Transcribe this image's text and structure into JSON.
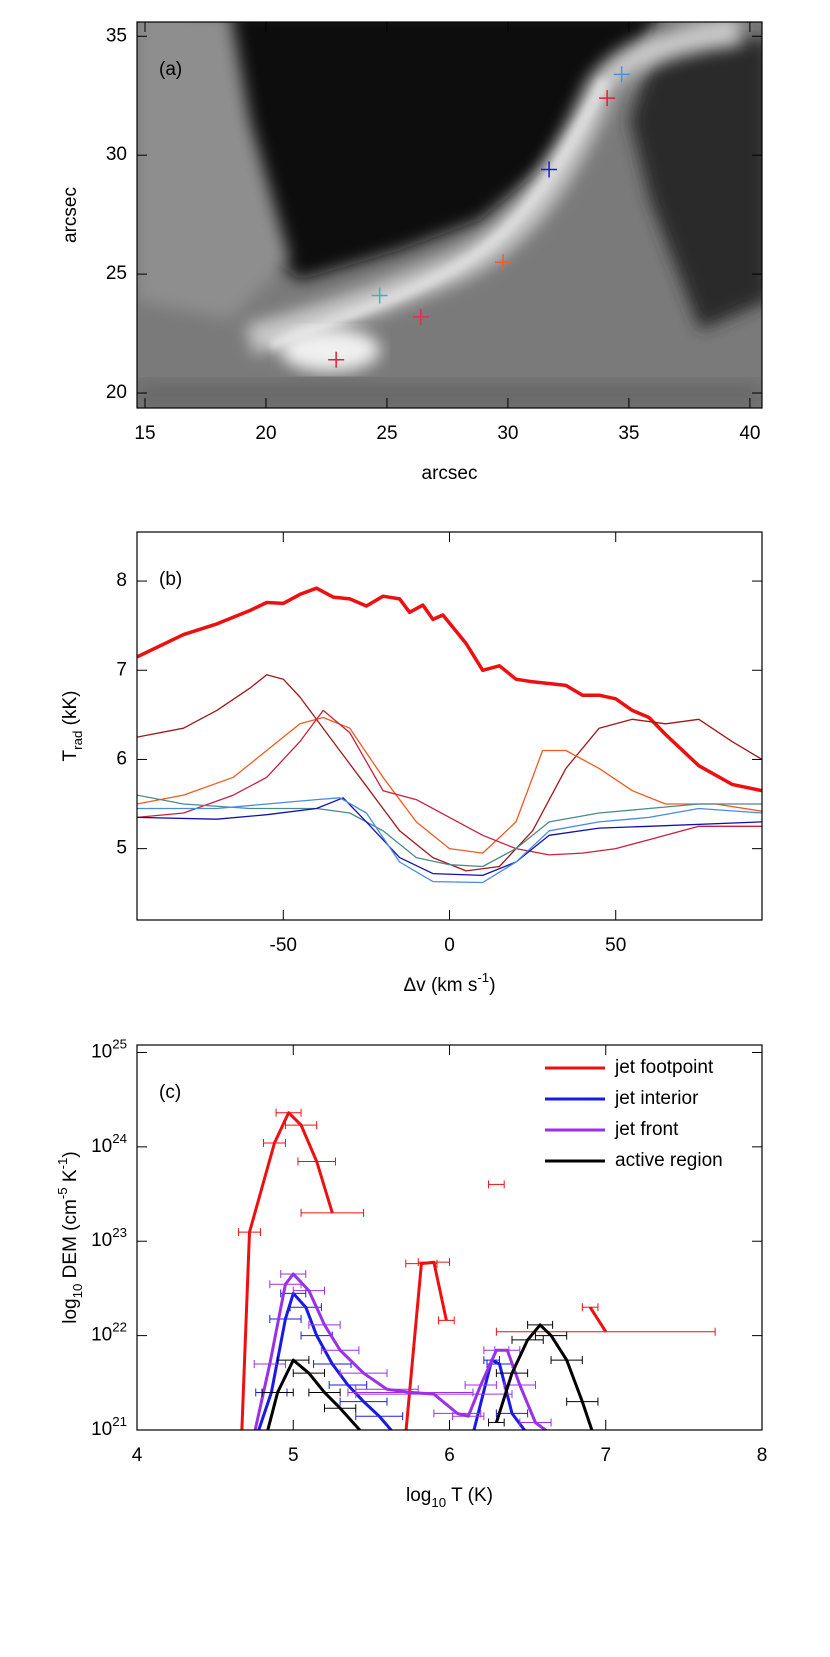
{
  "chart_data": [
    {
      "type": "scatter",
      "title": "(a)",
      "xlabel": "arcsec",
      "ylabel": "arcsec",
      "xlim": [
        14.67,
        40.5
      ],
      "ylim": [
        19.37,
        35.6
      ],
      "xticks": [
        15,
        20,
        25,
        30,
        35,
        40
      ],
      "yticks": [
        20,
        25,
        30,
        35
      ],
      "x": [
        22.9,
        26.4,
        24.7,
        29.8,
        31.7,
        34.1,
        34.7
      ],
      "values": [
        21.4,
        23.2,
        24.1,
        25.5,
        29.4,
        32.4,
        33.4
      ],
      "colors": [
        "#e8202a",
        "#e0304a",
        "#40b0c0",
        "#f06020",
        "#1a1ad0",
        "#e02030",
        "#4a90e0"
      ]
    },
    {
      "type": "line",
      "title": "(b)",
      "xlabel": "Δv (km s^{-1})",
      "ylabel": "T_{rad} (kK)",
      "xlim": [
        -94,
        94
      ],
      "ylim": [
        4.2,
        8.55
      ],
      "xticks": [
        -50,
        0,
        50
      ],
      "yticks": [
        5,
        6,
        7,
        8
      ],
      "series": [
        {
          "color": "#ee1010",
          "width": 3.5,
          "x": [
            -94,
            -80,
            -70,
            -60,
            -55,
            -50,
            -45,
            -40,
            -35,
            -30,
            -25,
            -20,
            -15,
            -12,
            -8,
            -5,
            -2,
            5,
            10,
            15,
            20,
            25,
            35,
            40,
            45,
            50,
            55,
            60,
            65,
            75,
            85,
            94
          ],
          "values": [
            7.15,
            7.4,
            7.52,
            7.67,
            7.76,
            7.75,
            7.85,
            7.92,
            7.82,
            7.8,
            7.72,
            7.83,
            7.8,
            7.65,
            7.73,
            7.57,
            7.62,
            7.3,
            7.0,
            7.05,
            6.9,
            6.87,
            6.83,
            6.72,
            6.72,
            6.68,
            6.55,
            6.47,
            6.28,
            5.93,
            5.72,
            5.65
          ]
        },
        {
          "color": "#a01818",
          "width": 1.3,
          "x": [
            -94,
            -80,
            -70,
            -60,
            -55,
            -50,
            -45,
            -35,
            -25,
            -15,
            -5,
            5,
            15,
            25,
            35,
            45,
            55,
            65,
            75,
            85,
            94
          ],
          "values": [
            6.25,
            6.35,
            6.55,
            6.8,
            6.95,
            6.9,
            6.7,
            6.2,
            5.7,
            5.2,
            4.9,
            4.75,
            4.8,
            5.2,
            5.9,
            6.35,
            6.45,
            6.4,
            6.45,
            6.2,
            6.0
          ]
        },
        {
          "color": "#f05a20",
          "width": 1.3,
          "x": [
            -94,
            -80,
            -65,
            -55,
            -45,
            -38,
            -30,
            -20,
            -10,
            0,
            10,
            20,
            28,
            35,
            45,
            55,
            65,
            80,
            94
          ],
          "values": [
            5.5,
            5.6,
            5.8,
            6.1,
            6.4,
            6.47,
            6.35,
            5.8,
            5.3,
            5.0,
            4.95,
            5.3,
            6.1,
            6.1,
            5.9,
            5.65,
            5.5,
            5.5,
            5.42
          ]
        },
        {
          "color": "#c8203c",
          "width": 1.3,
          "x": [
            -94,
            -80,
            -65,
            -55,
            -45,
            -38,
            -30,
            -20,
            -10,
            0,
            10,
            20,
            30,
            40,
            50,
            60,
            75,
            94
          ],
          "values": [
            5.35,
            5.4,
            5.6,
            5.8,
            6.2,
            6.55,
            6.3,
            5.65,
            5.55,
            5.35,
            5.15,
            5.0,
            4.93,
            4.95,
            5.0,
            5.1,
            5.25,
            5.25
          ]
        },
        {
          "color": "#4a8a8a",
          "width": 1.3,
          "x": [
            -94,
            -80,
            -60,
            -40,
            -30,
            -20,
            -10,
            0,
            10,
            20,
            30,
            45,
            60,
            75,
            94
          ],
          "values": [
            5.6,
            5.5,
            5.45,
            5.45,
            5.4,
            5.2,
            4.9,
            4.82,
            4.8,
            5.0,
            5.3,
            5.4,
            5.45,
            5.5,
            5.5
          ]
        },
        {
          "color": "#1010b0",
          "width": 1.3,
          "x": [
            -94,
            -70,
            -55,
            -40,
            -32,
            -25,
            -15,
            -5,
            10,
            20,
            30,
            45,
            60,
            94
          ],
          "values": [
            5.35,
            5.33,
            5.38,
            5.45,
            5.57,
            5.3,
            4.9,
            4.72,
            4.7,
            4.85,
            5.15,
            5.23,
            5.25,
            5.3
          ]
        },
        {
          "color": "#4a8ae0",
          "width": 1.3,
          "x": [
            -94,
            -70,
            -55,
            -40,
            -33,
            -25,
            -15,
            -5,
            10,
            20,
            30,
            45,
            60,
            75,
            94
          ],
          "values": [
            5.45,
            5.45,
            5.5,
            5.55,
            5.57,
            5.4,
            4.85,
            4.63,
            4.62,
            4.85,
            5.2,
            5.3,
            5.35,
            5.45,
            5.4
          ]
        }
      ]
    },
    {
      "type": "errorline",
      "title": "(c)",
      "xlabel": "log_{10} T (K)",
      "ylabel": "log_{10} DEM (cm^{-5} K^{-1})",
      "xlim": [
        4,
        8
      ],
      "ylim": [
        1e+21,
        1.2e+25
      ],
      "ylog": true,
      "legend": "upper right",
      "xticks": [
        4,
        5,
        6,
        7,
        8
      ],
      "yticks": [
        {
          "value": 1e+21,
          "label": "10^{21}"
        },
        {
          "value": 1e+22,
          "label": "10^{22}"
        },
        {
          "value": 1e+23,
          "label": "10^{23}"
        },
        {
          "value": 1e+24,
          "label": "10^{24}"
        },
        {
          "value": 1e+25,
          "label": "10^{25}"
        }
      ],
      "series": [
        {
          "name": "jet footpoint",
          "color": "#ee1010",
          "x": [
            4.67,
            4.72,
            4.88,
            4.97,
            5.05,
            5.15,
            5.25,
            null,
            5.72,
            5.82,
            5.9,
            5.98,
            null,
            6.3,
            null,
            6.9,
            7.0
          ],
          "values": [
            9e+20,
            1.25e+23,
            1.1e+24,
            2.3e+24,
            1.7e+24,
            7e+23,
            2e+23,
            null,
            9e+20,
            5.8e+22,
            6e+22,
            1.45e+22,
            null,
            4e+23,
            null,
            2e+22,
            1.1e+22
          ],
          "xerr": [
            0.05,
            0.07,
            0.07,
            0.08,
            0.1,
            0.12,
            0.2,
            null,
            0.3,
            0.1,
            0.1,
            0.05,
            null,
            0.05,
            null,
            0.05,
            0.7
          ]
        },
        {
          "name": "jet interior",
          "color": "#1a1ae8",
          "x": [
            4.77,
            4.86,
            4.95,
            5.0,
            5.08,
            5.15,
            5.25,
            5.35,
            5.45,
            5.55,
            5.65,
            null,
            6.15,
            6.27,
            6.32,
            6.4,
            6.5
          ],
          "values": [
            9e+20,
            2.5e+21,
            1.5e+22,
            2.8e+22,
            2e+22,
            1e+22,
            5e+21,
            3e+21,
            2e+21,
            1.4e+21,
            9e+20,
            null,
            9e+20,
            5.5e+21,
            5e+21,
            1.5e+21,
            9e+20
          ],
          "xerr": [
            0.05,
            0.1,
            0.1,
            0.08,
            0.1,
            0.1,
            0.12,
            0.12,
            0.15,
            0.15,
            0.1,
            null,
            0.05,
            0.05,
            0.08,
            0.1,
            0.05
          ]
        },
        {
          "name": "jet front",
          "color": "#9a30e8",
          "x": [
            4.75,
            4.85,
            4.95,
            5.0,
            5.1,
            5.2,
            5.3,
            5.45,
            5.6,
            5.75,
            5.9,
            6.05,
            6.12,
            6.2,
            6.3,
            6.37,
            6.45,
            6.55,
            6.65
          ],
          "values": [
            9e+20,
            5e+21,
            3.5e+22,
            4.5e+22,
            3e+22,
            1.3e+22,
            7e+21,
            4e+21,
            2.7e+21,
            2.5e+21,
            2.4e+21,
            1.5e+21,
            1.4e+21,
            3e+21,
            7e+21,
            7e+21,
            3e+21,
            1.2e+21,
            9e+20
          ],
          "xerr": [
            0.05,
            0.1,
            0.1,
            0.08,
            0.1,
            0.1,
            0.12,
            0.15,
            0.2,
            0.4,
            0.5,
            0.15,
            0.1,
            0.1,
            0.08,
            0.08,
            0.1,
            0.1,
            0.05
          ]
        },
        {
          "name": "active region",
          "color": "#000000",
          "x": [
            4.83,
            4.9,
            5.0,
            5.1,
            5.2,
            5.3,
            5.45,
            null,
            6.3,
            6.4,
            6.5,
            6.58,
            6.65,
            6.75,
            6.85,
            6.92
          ],
          "values": [
            9e+20,
            2.5e+21,
            5.5e+21,
            4e+21,
            2.5e+21,
            1.7e+21,
            9e+20,
            null,
            1.2e+21,
            4e+21,
            9e+21,
            1.3e+22,
            1e+22,
            5.5e+21,
            2e+21,
            9e+20
          ],
          "xerr": [
            0.05,
            0.1,
            0.1,
            0.1,
            0.1,
            0.1,
            0.05,
            null,
            0.05,
            0.1,
            0.1,
            0.08,
            0.1,
            0.1,
            0.1,
            0.05
          ]
        }
      ]
    }
  ]
}
